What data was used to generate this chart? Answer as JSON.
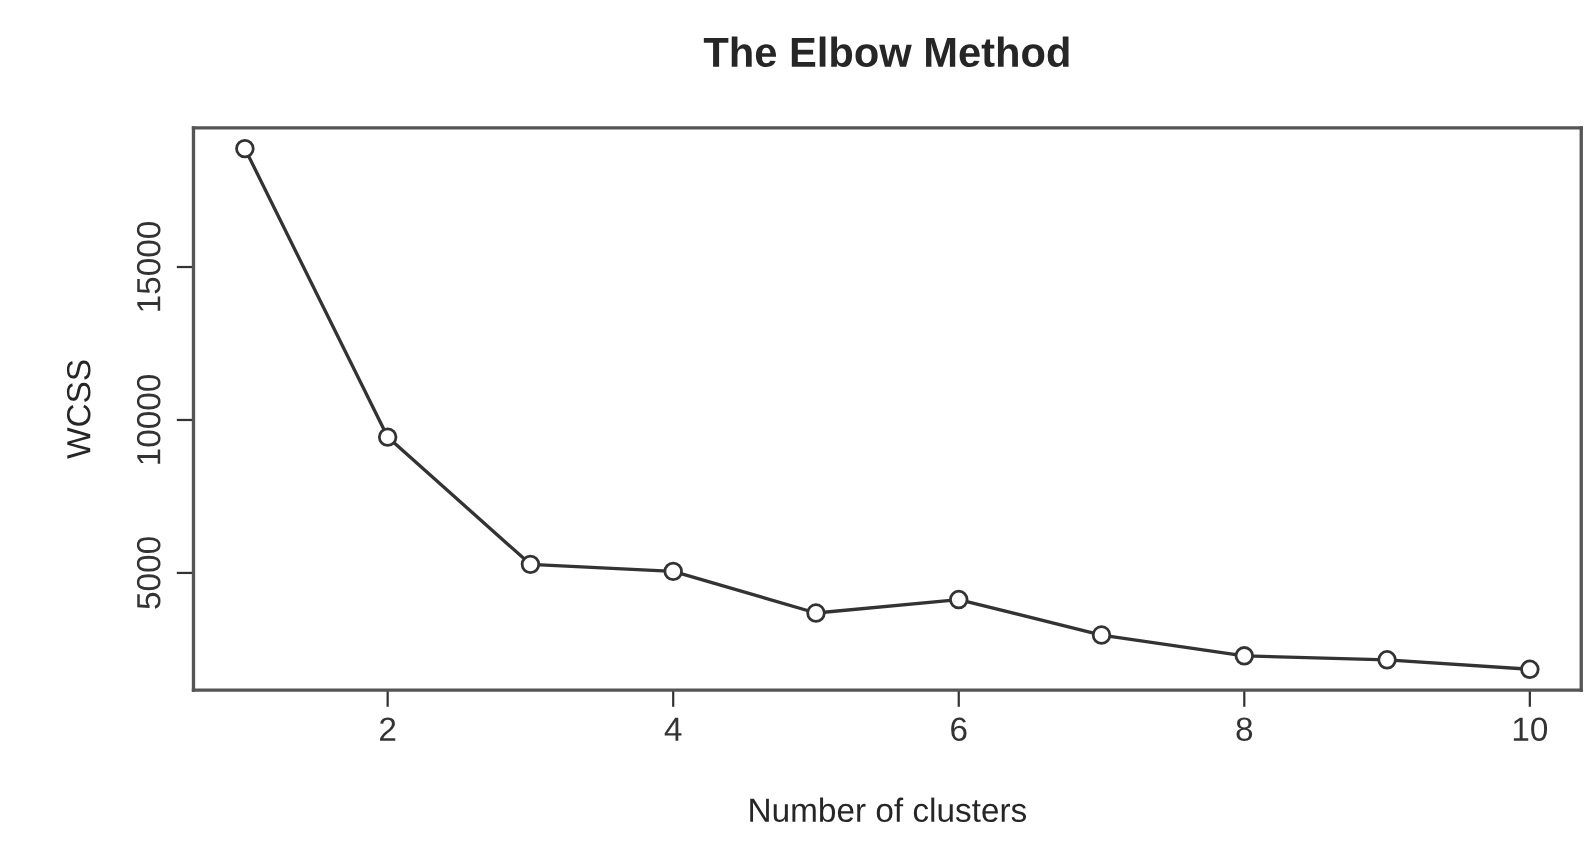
{
  "chart_data": {
    "type": "line",
    "title": "The Elbow Method",
    "xlabel": "Number of clusters",
    "ylabel": "WCSS",
    "x": [
      1,
      2,
      3,
      4,
      5,
      6,
      7,
      8,
      9,
      10
    ],
    "series": [
      {
        "color": "#333333",
        "values": [
          18870,
          9440,
          5280,
          5050,
          3690,
          4130,
          2970,
          2290,
          2160,
          1850
        ]
      }
    ],
    "xlim": [
      0.64,
      10.36
    ],
    "xticks": [
      2,
      4,
      6,
      8,
      10
    ],
    "ylim": [
      1169,
      19551
    ],
    "yticks": [
      5000,
      10000,
      15000
    ],
    "marker": "circle",
    "line_style": "solid",
    "grid": false,
    "legend": false
  }
}
